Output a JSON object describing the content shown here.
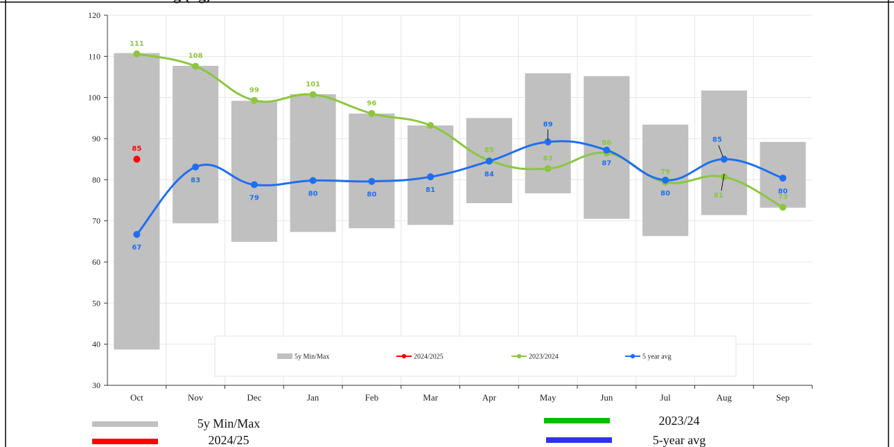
{
  "title": "g (kg)",
  "chart_data": {
    "type": "bar",
    "categories": [
      "Oct",
      "Nov",
      "Dec",
      "Jan",
      "Feb",
      "Mar",
      "Apr",
      "May",
      "Jun",
      "Jul",
      "Aug",
      "Sep"
    ],
    "ylim": [
      30,
      120
    ],
    "yticks": [
      30,
      40,
      50,
      60,
      70,
      80,
      90,
      100,
      110,
      120
    ],
    "grid": true,
    "series": [
      {
        "name": "5y Min/Max",
        "type": "floating-bar",
        "color": "#c0c0c0",
        "min": [
          38.7,
          69.4,
          64.9,
          67.3,
          68.2,
          69.0,
          74.3,
          76.7,
          70.5,
          66.3,
          71.4,
          73.2
        ],
        "max": [
          110.8,
          107.7,
          99.2,
          100.8,
          96.1,
          93.2,
          95.0,
          105.9,
          105.2,
          93.4,
          101.7,
          89.2
        ]
      },
      {
        "name": "2024/2025",
        "type": "point",
        "color": "#ff0000",
        "values": [
          85,
          null,
          null,
          null,
          null,
          null,
          null,
          null,
          null,
          null,
          null,
          null
        ],
        "labels": [
          "85",
          "",
          "",
          "",
          "",
          "",
          "",
          "",
          "",
          "",
          "",
          ""
        ]
      },
      {
        "name": "2023/2024",
        "type": "line",
        "color": "#8cc63f",
        "values": [
          110.6,
          107.6,
          99.3,
          100.7,
          96.1,
          93.2,
          84.7,
          82.7,
          86.5,
          79.4,
          80.7,
          73.3
        ],
        "labels": [
          "111",
          "108",
          "99",
          "101",
          "96",
          "",
          "85",
          "83",
          "86",
          "79",
          "81",
          "73"
        ]
      },
      {
        "name": "5 year avg",
        "type": "line",
        "color": "#1e6ff0",
        "values": [
          66.7,
          83.1,
          78.8,
          79.8,
          79.6,
          80.7,
          84.5,
          89.2,
          87.2,
          79.9,
          85.0,
          80.4
        ],
        "labels": [
          "67",
          "83",
          "79",
          "80",
          "80",
          "81",
          "84",
          "89",
          "87",
          "80",
          "85",
          "80"
        ]
      }
    ],
    "inner_legend": [
      {
        "label": "5y Min/Max",
        "kind": "bar",
        "color": "#c0c0c0"
      },
      {
        "label": "2024/2025",
        "kind": "line-dot",
        "color": "#ff0000"
      },
      {
        "label": "2023/2024",
        "kind": "line-dot",
        "color": "#8cc63f"
      },
      {
        "label": "5 year avg",
        "kind": "line-dot",
        "color": "#1e6ff0"
      }
    ]
  },
  "outer_legend": [
    {
      "label": "5y Min/Max",
      "color": "#c0c0c0"
    },
    {
      "label": "2024/25",
      "color": "#ff0000"
    },
    {
      "label": "2023/24",
      "color": "#00c000"
    },
    {
      "label": "5-year avg",
      "color": "#3030f0"
    }
  ]
}
